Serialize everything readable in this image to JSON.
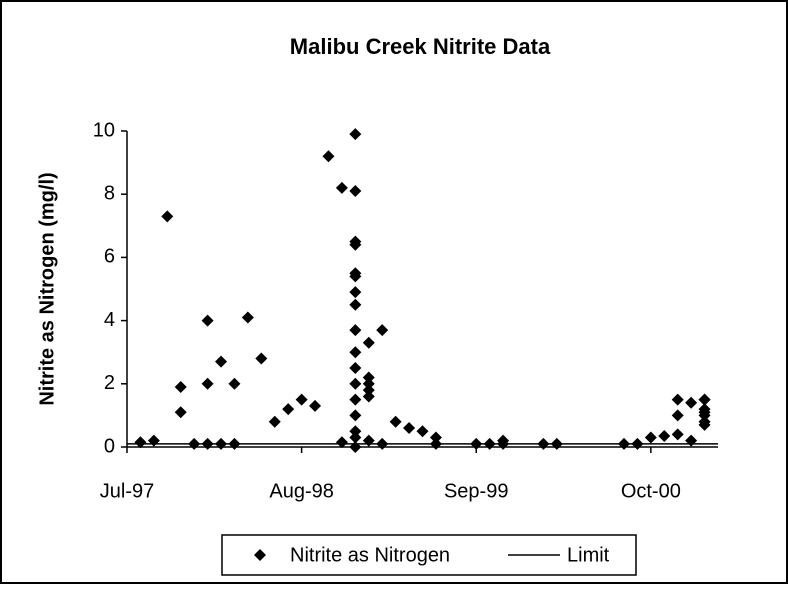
{
  "chart_data": {
    "type": "scatter",
    "title": "Malibu Creek Nitrite Data",
    "y_label": "Nitrite as Nitrogen (mg/l)",
    "ylim": [
      0,
      10
    ],
    "yticks": [
      0,
      2,
      4,
      6,
      8,
      10
    ],
    "xlim": [
      "1997-07",
      "2001-03"
    ],
    "xticks": [
      {
        "value": "1997-07",
        "label": "Jul-97"
      },
      {
        "value": "1998-08",
        "label": "Aug-98"
      },
      {
        "value": "1999-09",
        "label": "Sep-99"
      },
      {
        "value": "2000-10",
        "label": "Oct-00"
      }
    ],
    "series": [
      {
        "name": "Nitrite as Nitrogen",
        "style": "markers",
        "color": "#000000",
        "x": [
          "1997-08",
          "1997-09",
          "1997-10",
          "1997-11",
          "1997-11",
          "1997-12",
          "1998-01",
          "1998-01",
          "1998-01",
          "1998-02",
          "1998-02",
          "1998-03",
          "1998-03",
          "1998-04",
          "1998-05",
          "1998-06",
          "1998-07",
          "1998-08",
          "1998-09",
          "1998-10",
          "1998-11",
          "1998-11",
          "1998-12",
          "1998-12",
          "1998-12",
          "1998-12",
          "1998-12",
          "1998-12",
          "1998-12",
          "1998-12",
          "1998-12",
          "1998-12",
          "1998-12",
          "1998-12",
          "1998-12",
          "1998-12",
          "1998-12",
          "1998-12",
          "1998-12",
          "1999-01",
          "1999-01",
          "1999-01",
          "1999-01",
          "1999-01",
          "1999-01",
          "1999-02",
          "1999-02",
          "1999-03",
          "1999-04",
          "1999-05",
          "1999-06",
          "1999-06",
          "1999-09",
          "1999-10",
          "1999-11",
          "1999-11",
          "2000-02",
          "2000-03",
          "2000-08",
          "2000-09",
          "2000-10",
          "2000-11",
          "2000-12",
          "2000-12",
          "2000-12",
          "2001-01",
          "2001-01",
          "2001-02",
          "2001-02",
          "2001-02",
          "2001-02",
          "2001-02",
          "2001-02",
          "2001-02"
        ],
        "values": [
          0.15,
          0.2,
          7.3,
          1.1,
          1.9,
          0.1,
          4.0,
          0.1,
          2.0,
          2.7,
          0.1,
          0.1,
          2.0,
          4.1,
          2.8,
          0.8,
          1.2,
          1.5,
          1.3,
          9.2,
          8.2,
          0.15,
          9.9,
          8.1,
          6.5,
          6.4,
          5.5,
          5.4,
          4.9,
          4.5,
          3.7,
          3.0,
          2.5,
          2.0,
          1.5,
          1.0,
          0.5,
          0.3,
          0.0,
          1.8,
          2.2,
          1.6,
          2.0,
          3.3,
          0.2,
          3.7,
          0.1,
          0.8,
          0.6,
          0.5,
          0.3,
          0.1,
          0.1,
          0.1,
          0.2,
          0.1,
          0.1,
          0.1,
          0.1,
          0.1,
          0.3,
          0.35,
          1.0,
          1.5,
          0.4,
          1.4,
          0.2,
          0.7,
          1.2,
          1.5,
          1.1,
          1.5,
          1.0,
          0.8
        ]
      },
      {
        "name": "Limit",
        "style": "line",
        "color": "#000000",
        "x": [
          "1997-07",
          "2001-03"
        ],
        "values": [
          0.1,
          0.1
        ]
      }
    ]
  }
}
